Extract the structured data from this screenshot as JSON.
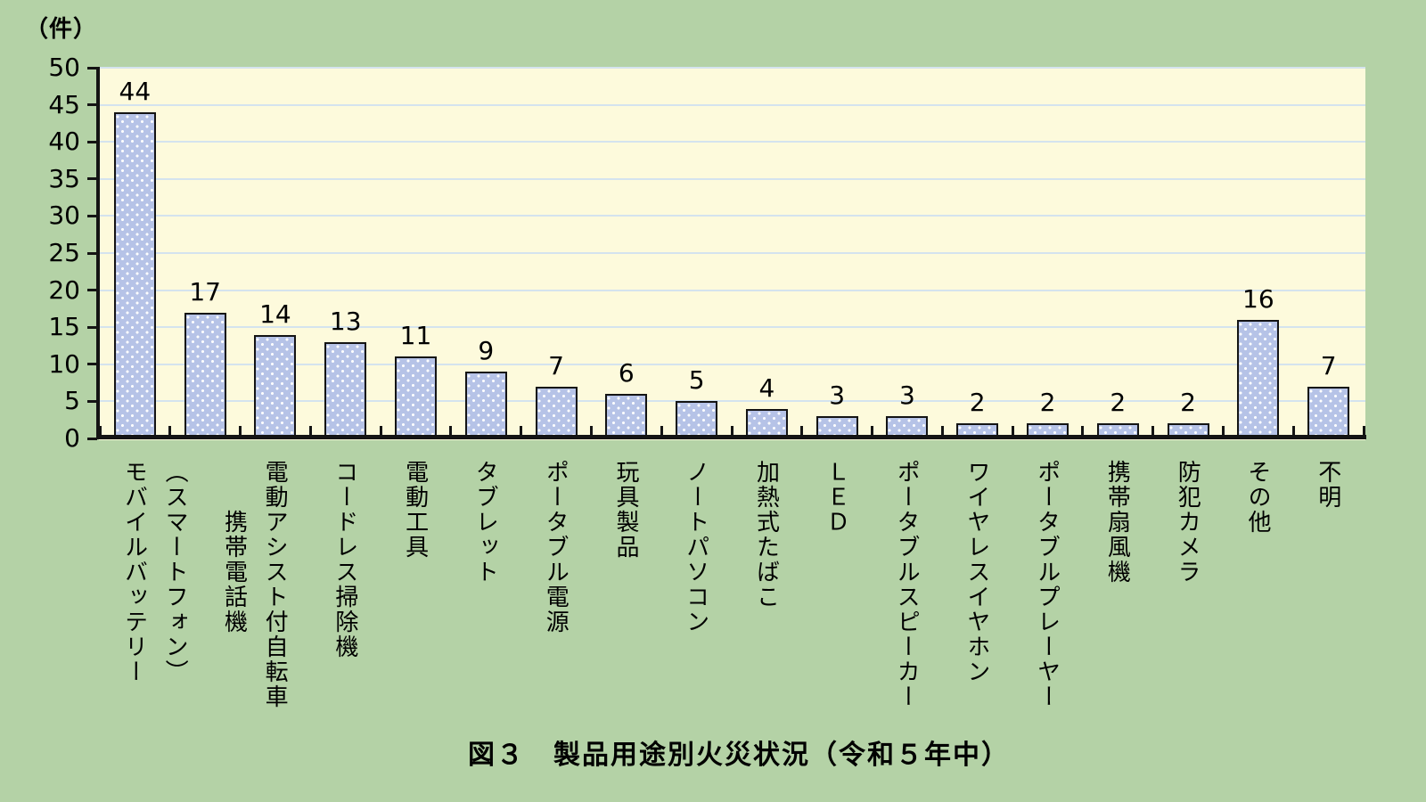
{
  "chart_data": {
    "type": "bar",
    "title": "図３　製品用途別火災状況（令和５年中）",
    "unit_label": "（件）",
    "ylim": [
      0,
      50
    ],
    "ytick_step": 5,
    "yticks": [
      0,
      5,
      10,
      15,
      20,
      25,
      30,
      35,
      40,
      45,
      50
    ],
    "grid": "horizontal",
    "legend": "none",
    "categories": [
      "モバイルバッテリー",
      "携帯電話機\n（スマートフォン）",
      "電動アシスト付自転車",
      "コードレス掃除機",
      "電動工具",
      "タブレット",
      "ポータブル電源",
      "玩具製品",
      "ノートパソコン",
      "加熱式たばこ",
      "ＬＥＤ",
      "ポータブルスピーカー",
      "ワイヤレスイヤホン",
      "ポータブルプレーヤー",
      "携帯扇風機",
      "防犯カメラ",
      "その他",
      "不明"
    ],
    "values": [
      44,
      17,
      14,
      13,
      11,
      9,
      7,
      6,
      5,
      4,
      3,
      3,
      2,
      2,
      2,
      2,
      16,
      7
    ],
    "colors": {
      "page_bg": "#b4d2a6",
      "plot_bg": "#fdfadc",
      "gridline": "#d4e3ee",
      "bar_fill": "#b6c3e7",
      "bar_dot": "#ffffff",
      "bar_border": "#141414",
      "axis": "#141414",
      "text": "#000000"
    }
  }
}
